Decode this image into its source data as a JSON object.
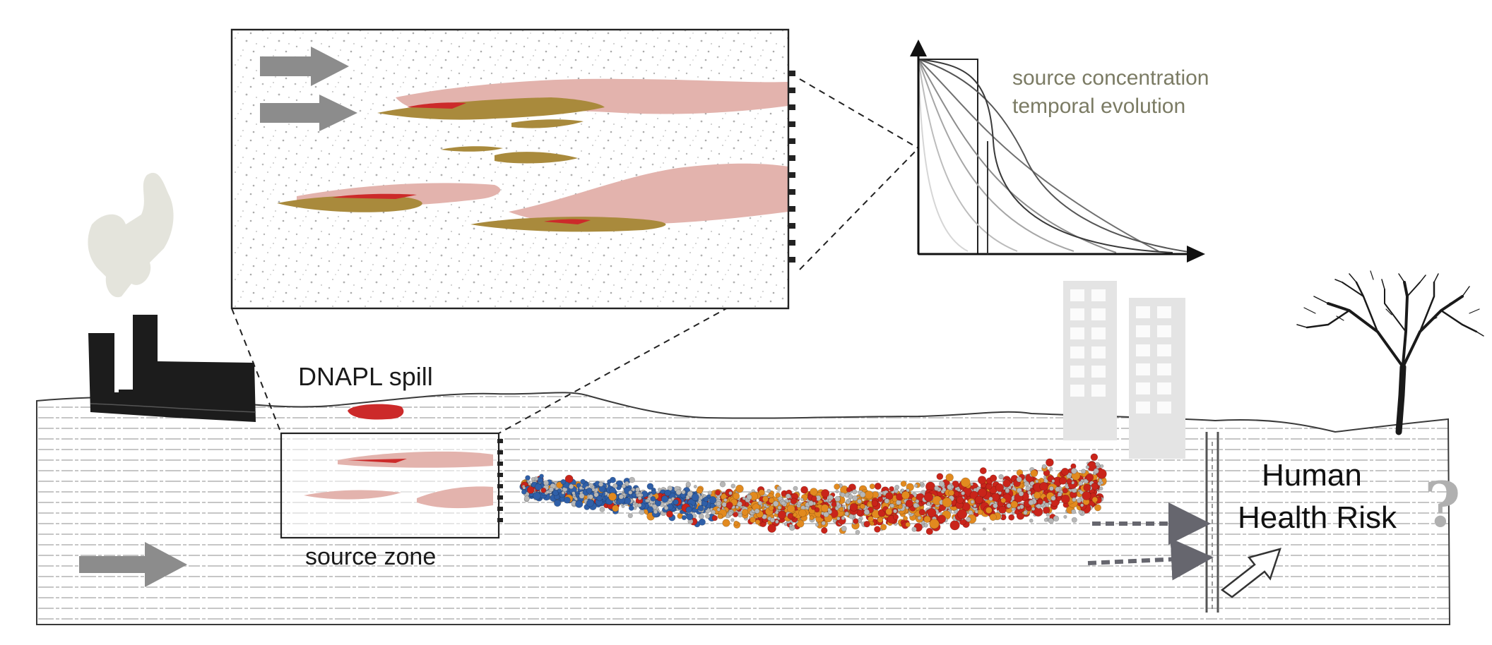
{
  "labels": {
    "spill": "DNAPL spill",
    "source_zone": "source zone",
    "risk_line1": "Human",
    "risk_line2": "Health Risk",
    "question_mark": "?",
    "graph_line1": "source concentration",
    "graph_line2": "temporal evolution"
  },
  "icons": [
    "factory-icon",
    "smoke-icon",
    "building-icon",
    "tree-icon",
    "well-icon",
    "flow-arrow-icon",
    "exposure-arrow-icon"
  ],
  "colors": {
    "spill_red": "#cc2a2a",
    "dnapl_pool_brown": "#a98a3c",
    "dissolved_plume_pink": "#e3b3ad",
    "plume_blue": "#2f5fa8",
    "plume_orange": "#e28a1f",
    "plume_red": "#c9241a",
    "graph_label_olive": "#7b7b64",
    "arrow_grey": "#8c8c8c",
    "question_grey": "#b0b0b0"
  }
}
